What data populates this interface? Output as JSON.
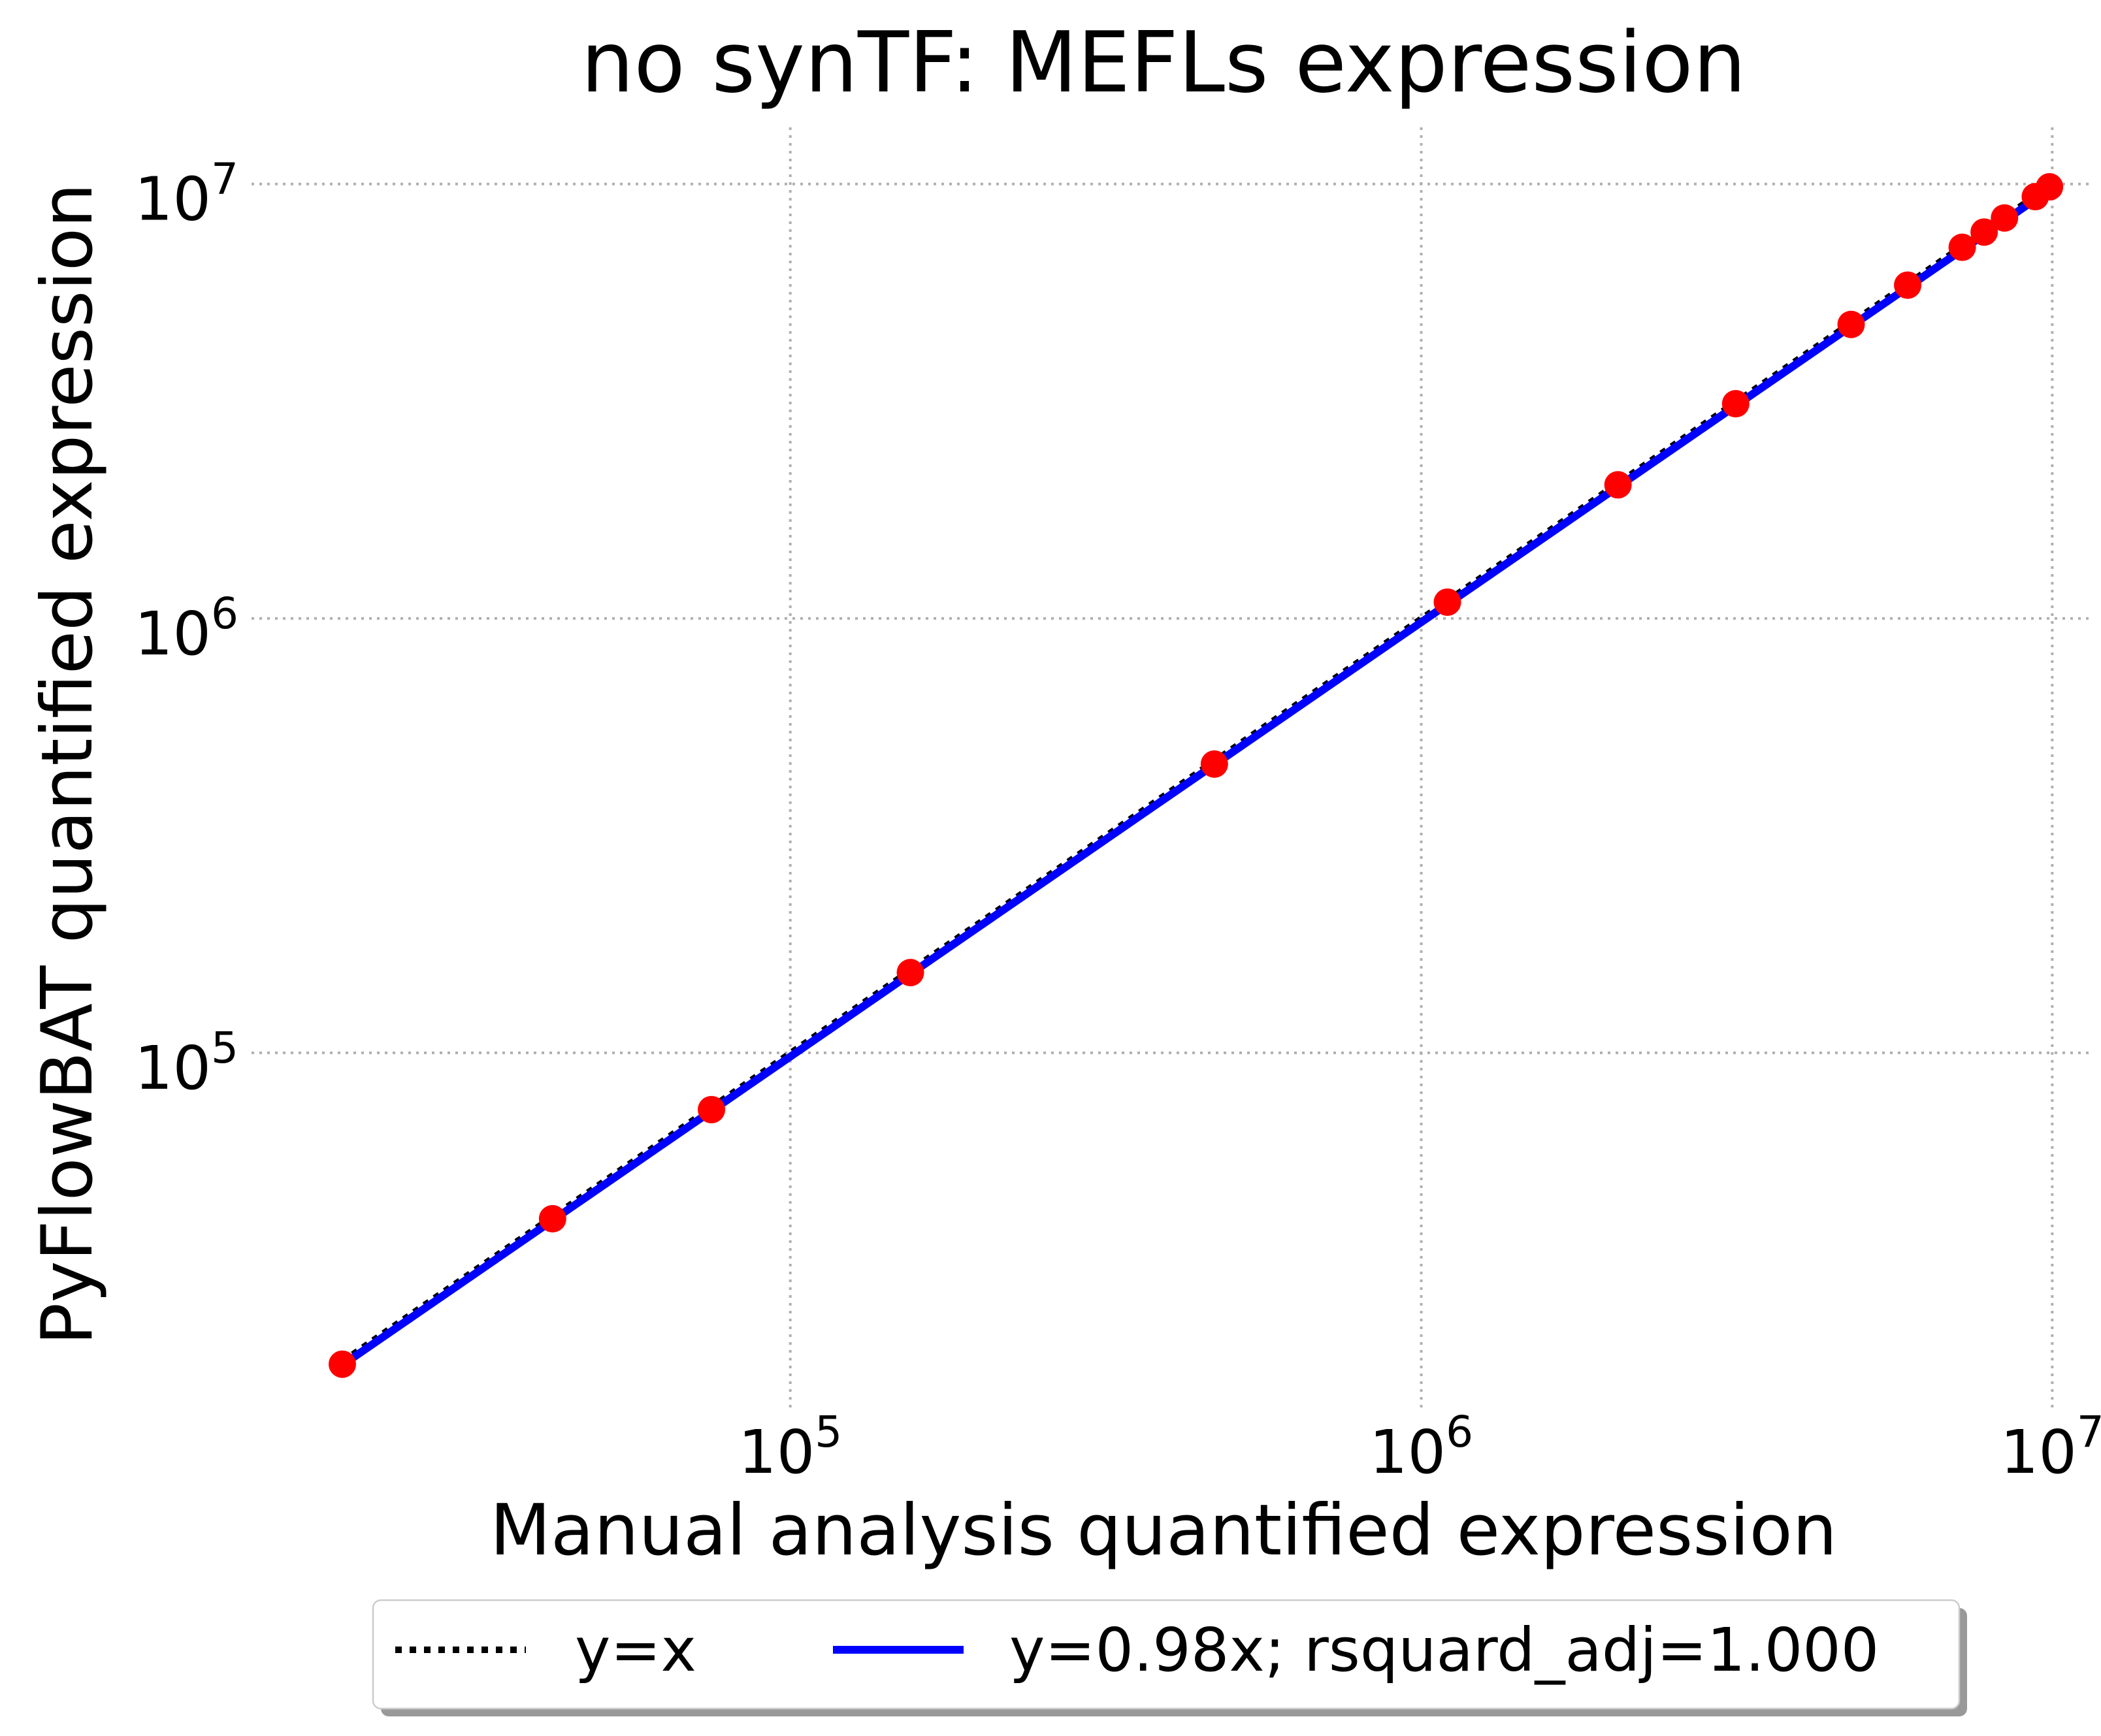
{
  "chart_data": {
    "type": "scatter",
    "title": "no synTF: MEFLs expression",
    "xlabel": "Manual analysis quantified expression",
    "ylabel": "PyFlowBAT quantified expression",
    "xscale": "log",
    "yscale": "log",
    "xlim": [
      14000,
      11500000
    ],
    "ylim": [
      15000,
      13500000
    ],
    "grid": true,
    "x_ticks": [
      {
        "value": 100000,
        "base": "10",
        "exp": "5"
      },
      {
        "value": 1000000,
        "base": "10",
        "exp": "6"
      },
      {
        "value": 10000000,
        "base": "10",
        "exp": "7"
      }
    ],
    "y_ticks": [
      {
        "value": 100000,
        "base": "10",
        "exp": "5"
      },
      {
        "value": 1000000,
        "base": "10",
        "exp": "6"
      },
      {
        "value": 10000000,
        "base": "10",
        "exp": "7"
      }
    ],
    "legend_position": "below",
    "series": [
      {
        "name": "y=x",
        "kind": "line",
        "style": "dotted",
        "color": "#000000",
        "slope": 1.0
      },
      {
        "name": "y=0.98x; rsquard_adj=1.000",
        "kind": "line",
        "style": "solid",
        "color": "#0000ff",
        "slope": 0.98
      },
      {
        "kind": "scatter",
        "color": "#ff0000",
        "points": [
          [
            19500,
            19200
          ],
          [
            42000,
            41500
          ],
          [
            75000,
            74000
          ],
          [
            155000,
            153000
          ],
          [
            470000,
            462000
          ],
          [
            1100000,
            1090000
          ],
          [
            2050000,
            2030000
          ],
          [
            3150000,
            3120000
          ],
          [
            4800000,
            4750000
          ],
          [
            5900000,
            5850000
          ],
          [
            7200000,
            7150000
          ],
          [
            7800000,
            7750000
          ],
          [
            8400000,
            8350000
          ],
          [
            9400000,
            9350000
          ],
          [
            9900000,
            9850000
          ]
        ]
      }
    ]
  }
}
